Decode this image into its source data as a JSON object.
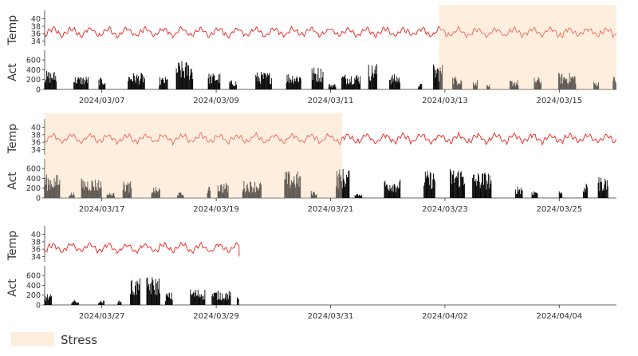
{
  "chart_data": {
    "type": "line",
    "colors": {
      "temp": "#e8201a",
      "activity": "#000000",
      "stress": "#fdeedd"
    },
    "legend": {
      "label": "Stress",
      "placement": "bottom-left"
    },
    "temp_axis": {
      "label": "Temp",
      "ylim": [
        33,
        41
      ],
      "ticks": [
        "34",
        "36",
        "38",
        "40"
      ]
    },
    "act_axis": {
      "label": "Act",
      "ylim": [
        0,
        700
      ],
      "ticks": [
        "0",
        "200",
        "400",
        "600"
      ]
    },
    "panels": [
      {
        "x_start": "2024-03-06",
        "x_end": "2024-03-16",
        "temp_range": [
          34.5,
          37.9
        ],
        "activity_peak": 600,
        "stress_periods": [
          [
            "2024-03-12.9",
            "2024-03-16"
          ]
        ],
        "x_ticks": [
          "2024/03/07",
          "2024/03/09",
          "2024/03/11",
          "2024/03/13",
          "2024/03/15"
        ]
      },
      {
        "x_start": "2024-03-16",
        "x_end": "2024-03-26",
        "temp_range": [
          34.8,
          38.8
        ],
        "activity_peak": 650,
        "stress_periods": [
          [
            "2024-03-16",
            "2024-03-21.2"
          ]
        ],
        "x_ticks": [
          "2024/03/17",
          "2024/03/19",
          "2024/03/21",
          "2024/03/23",
          "2024/03/25"
        ]
      },
      {
        "x_start": "2024-03-26",
        "x_end": "2024-04-05",
        "temp_range": [
          34.0,
          38.3
        ],
        "activity_peak": 600,
        "data_end": "2024-03-29.4",
        "stress_periods": [],
        "x_ticks": [
          "2024/03/27",
          "2024/03/29",
          "2024/03/31",
          "2024/04/02",
          "2024/04/04"
        ]
      }
    ]
  }
}
